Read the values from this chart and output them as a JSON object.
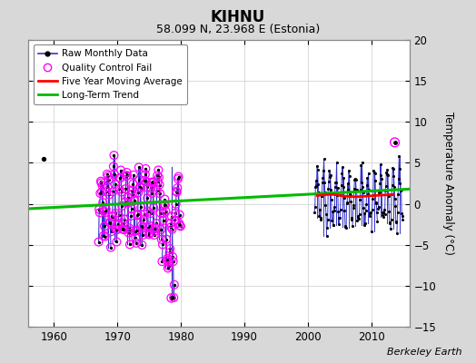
{
  "title": "KIHNU",
  "subtitle": "58.099 N, 23.968 E (Estonia)",
  "ylabel": "Temperature Anomaly (°C)",
  "xlabel_credit": "Berkeley Earth",
  "ylim": [
    -15,
    20
  ],
  "xlim": [
    1956,
    2016
  ],
  "xticks": [
    1960,
    1970,
    1980,
    1990,
    2000,
    2010
  ],
  "yticks": [
    -15,
    -10,
    -5,
    0,
    5,
    10,
    15,
    20
  ],
  "bg_color": "#d8d8d8",
  "plot_bg_color": "#ffffff",
  "raw_line_color": "#3333cc",
  "raw_dot_color": "#000000",
  "qc_fail_color": "#ff00ff",
  "moving_avg_color": "#ff0000",
  "trend_color": "#00bb00",
  "lone_dot_x": 1958.3,
  "lone_dot_y": 5.5,
  "trend_x": [
    1956,
    2016
  ],
  "trend_y": [
    -0.6,
    1.8
  ],
  "moving_avg_x": [
    2001.5,
    2002.5,
    2003.5,
    2004.5,
    2005.5,
    2006.5,
    2007.5,
    2008.5,
    2009.5,
    2010.5,
    2011.5,
    2012.5,
    2013.5
  ],
  "moving_avg_y": [
    1.0,
    1.1,
    1.15,
    1.1,
    0.95,
    0.9,
    0.85,
    0.9,
    0.95,
    1.0,
    1.05,
    1.1,
    1.15
  ],
  "qc_fail_outlier_x": 2013.7,
  "qc_fail_outlier_y": 7.5,
  "seed_early": 12345,
  "seed_late": 54321
}
